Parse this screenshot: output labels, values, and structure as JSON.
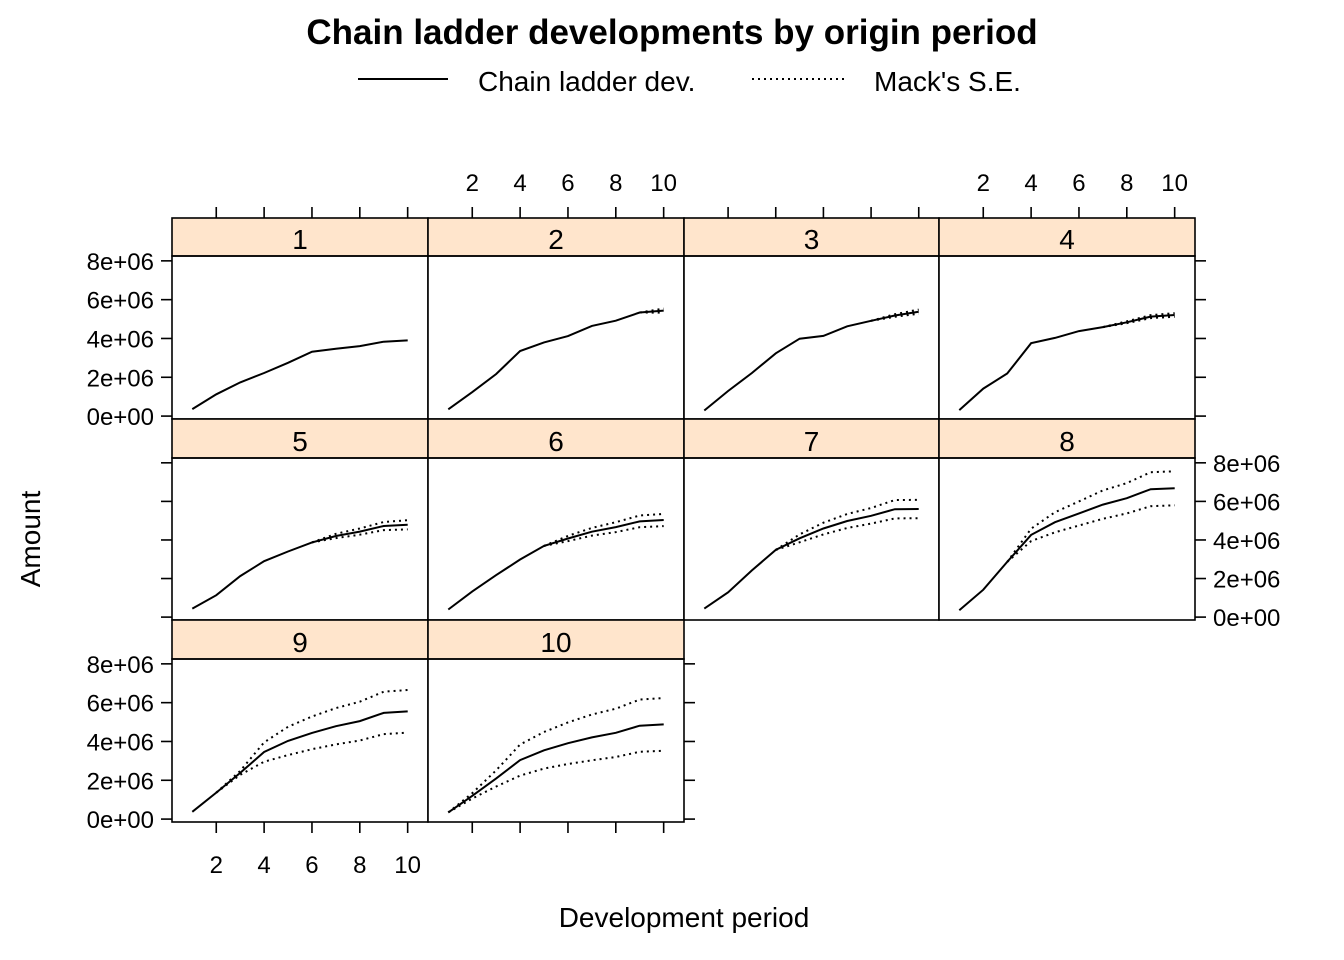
{
  "chart_data": {
    "type": "line",
    "title": "Chain ladder developments by origin period",
    "xlabel": "Development period",
    "ylabel": "Amount",
    "layout": "lattice 4x3, panels 1-10",
    "legend_position": "top",
    "legend": [
      {
        "label": "Chain ladder dev.",
        "style": "solid"
      },
      {
        "label": "Mack's S.E.",
        "style": "dotted"
      }
    ],
    "strip_color": "#ffe5cc",
    "x_ticks": [
      "2",
      "4",
      "6",
      "8",
      "10"
    ],
    "y_ticks": [
      "0e+00",
      "2e+06",
      "4e+06",
      "6e+06",
      "8e+06"
    ],
    "xlim": [
      0.15,
      10.85
    ],
    "ylim": [
      -150000,
      8250000
    ],
    "x": [
      1,
      2,
      3,
      4,
      5,
      6,
      7,
      8,
      9,
      10
    ],
    "panels": [
      {
        "name": "1",
        "mean": [
          357848,
          1124788,
          1735330,
          2218270,
          2745596,
          3319994,
          3466336,
          3606286,
          3833515,
          3901463
        ],
        "lower": [],
        "upper": []
      },
      {
        "name": "2",
        "mean": [
          352118,
          1236139,
          2170033,
          3353322,
          3799067,
          4120063,
          4647867,
          4914039,
          5339085,
          5433719
        ],
        "lower": [
          null,
          null,
          null,
          null,
          null,
          null,
          null,
          null,
          5339085,
          5330000
        ],
        "upper": [
          null,
          null,
          null,
          null,
          null,
          null,
          null,
          null,
          5339085,
          5537000
        ]
      },
      {
        "name": "3",
        "mean": [
          290507,
          1292306,
          2218525,
          3235179,
          3985995,
          4132918,
          4628910,
          4909315,
          5183000,
          5379000
        ],
        "lower": [
          null,
          null,
          null,
          null,
          null,
          null,
          null,
          4909315,
          5116000,
          5270000
        ],
        "upper": [
          null,
          null,
          null,
          null,
          null,
          null,
          null,
          4909315,
          5250000,
          5487000
        ]
      },
      {
        "name": "4",
        "mean": [
          310608,
          1418858,
          2195047,
          3757447,
          4029929,
          4381982,
          4588268,
          4835000,
          5127000,
          5210000
        ],
        "lower": [
          null,
          null,
          null,
          null,
          null,
          null,
          4588268,
          4786000,
          5050000,
          5120000
        ],
        "upper": [
          null,
          null,
          null,
          null,
          null,
          null,
          4588268,
          4885000,
          5205000,
          5300000
        ]
      },
      {
        "name": "5",
        "mean": [
          443160,
          1136350,
          2128333,
          2897821,
          3402672,
          3873000,
          4207000,
          4434000,
          4722000,
          4787000
        ],
        "lower": [
          null,
          null,
          null,
          null,
          null,
          3873000,
          4096000,
          4274000,
          4510000,
          4550000
        ],
        "upper": [
          null,
          null,
          null,
          null,
          null,
          3873000,
          4318000,
          4594000,
          4934000,
          5024000
        ]
      },
      {
        "name": "6",
        "mean": [
          396132,
          1333217,
          2180715,
          2985752,
          3691712,
          4075000,
          4426000,
          4665000,
          4965000,
          5035000
        ],
        "lower": [
          null,
          null,
          null,
          null,
          3691712,
          3940000,
          4225000,
          4410000,
          4660000,
          4720000
        ],
        "upper": [
          null,
          null,
          null,
          null,
          3691712,
          4210000,
          4627000,
          4920000,
          5270000,
          5350000
        ]
      },
      {
        "name": "7",
        "mean": [
          440832,
          1288463,
          2419861,
          3483130,
          4084000,
          4592000,
          4982000,
          5254000,
          5595000,
          5604000
        ],
        "lower": [
          null,
          null,
          null,
          3483130,
          3880000,
          4290000,
          4620000,
          4850000,
          5120000,
          5130000
        ],
        "upper": [
          null,
          null,
          null,
          3483130,
          4288000,
          4894000,
          5344000,
          5658000,
          6070000,
          6078000
        ]
      },
      {
        "name": "8",
        "mean": [
          359480,
          1421128,
          2864498,
          4262000,
          4920000,
          5375000,
          5836000,
          6165000,
          6632000,
          6680000
        ],
        "lower": [
          null,
          null,
          2864498,
          3940000,
          4400000,
          4750000,
          5100000,
          5380000,
          5750000,
          5800000
        ],
        "upper": [
          null,
          null,
          2864498,
          4584000,
          5440000,
          6000000,
          6572000,
          6950000,
          7514000,
          7560000
        ]
      },
      {
        "name": "9",
        "mean": [
          376686,
          1363294,
          2381000,
          3455000,
          4027000,
          4444000,
          4785000,
          5051000,
          5473000,
          5550000
        ],
        "lower": [
          null,
          1363294,
          2280000,
          2960000,
          3300000,
          3600000,
          3850000,
          4050000,
          4380000,
          4450000
        ],
        "upper": [
          null,
          1363294,
          2482000,
          3950000,
          4754000,
          5288000,
          5720000,
          6052000,
          6566000,
          6650000
        ]
      },
      {
        "name": "10",
        "mean": [
          344014,
          1200818,
          2096000,
          3041000,
          3543000,
          3911000,
          4211000,
          4445000,
          4815000,
          4880000
        ],
        "lower": [
          344014,
          1060000,
          1680000,
          2240000,
          2600000,
          2840000,
          3030000,
          3200000,
          3470000,
          3520000
        ],
        "upper": [
          344014,
          1340000,
          2512000,
          3842000,
          4486000,
          4982000,
          5392000,
          5690000,
          6160000,
          6240000
        ]
      }
    ]
  }
}
